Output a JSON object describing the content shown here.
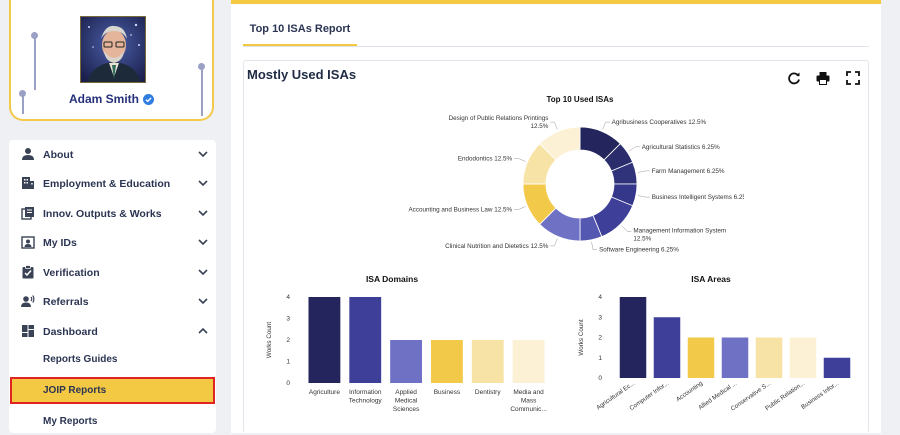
{
  "profile": {
    "name": "Adam Smith"
  },
  "sidebar": {
    "items": [
      {
        "label": "About",
        "icon": "person-icon"
      },
      {
        "label": "Employment & Education",
        "icon": "building-icon"
      },
      {
        "label": "Innov. Outputs & Works",
        "icon": "documents-icon"
      },
      {
        "label": "My IDs",
        "icon": "id-card-icon"
      },
      {
        "label": "Verification",
        "icon": "clipboard-check-icon"
      },
      {
        "label": "Referrals",
        "icon": "speaking-person-icon"
      },
      {
        "label": "Dashboard",
        "icon": "dashboard-icon"
      }
    ],
    "sub_items": [
      {
        "label": "Reports Guides"
      },
      {
        "label": "JOIP Reports"
      },
      {
        "label": "My Reports"
      }
    ]
  },
  "tabs": [
    {
      "label": "Top 10 ISAs Report"
    }
  ],
  "card": {
    "title": "Mostly Used ISAs"
  },
  "colors": {
    "accent": "#f3c843",
    "navy_dark": "#23255c",
    "navy": "#3b3b94",
    "periwinkle": "#6d6fc0",
    "gold": "#f3c94a",
    "light_gold": "#f7e19e",
    "cream": "#fbf1d3"
  },
  "chart_data": [
    {
      "type": "pie",
      "title": "Top 10 Used ISAs",
      "donut": true,
      "slices": [
        {
          "label": "Agribusiness Cooperatives",
          "value": 12.5,
          "display": "12.5%",
          "color": "#23255c"
        },
        {
          "label": "Agricultural Statistics",
          "value": 6.25,
          "display": "6.25%",
          "color": "#2a2c6c"
        },
        {
          "label": "Farm Management",
          "value": 6.25,
          "display": "6.25%",
          "color": "#30327a"
        },
        {
          "label": "Business Intelligent Systems",
          "value": 6.25,
          "display": "6.25%",
          "color": "#35378a"
        },
        {
          "label": "Management Information System",
          "value": 12.5,
          "display": "12.5%",
          "color": "#3d3f98"
        },
        {
          "label": "Software Engineering",
          "value": 6.25,
          "display": "6.25%",
          "color": "#5558b0"
        },
        {
          "label": "Clinical Nutrition and Dietetics",
          "value": 12.5,
          "display": "12.5%",
          "color": "#6f71c4"
        },
        {
          "label": "Accounting and Business Law",
          "value": 12.5,
          "display": "12.5%",
          "color": "#f3c94a"
        },
        {
          "label": "Endodontics",
          "value": 12.5,
          "display": "12.5%",
          "color": "#f8e3a6"
        },
        {
          "label": "Design of Public Relations Printings",
          "value": 12.5,
          "display": "12.5%",
          "color": "#fcf1d4"
        }
      ]
    },
    {
      "type": "bar",
      "title": "ISA Domains",
      "ylabel": "Works Count",
      "ylim": [
        0,
        4
      ],
      "yticks": [
        "0",
        "1",
        "2",
        "3",
        "4"
      ],
      "categories": [
        [
          "Agriculture"
        ],
        [
          "Information",
          "Technology"
        ],
        [
          "Applied",
          "Medical",
          "Sciences"
        ],
        [
          "Business"
        ],
        [
          "Dentistry"
        ],
        [
          "Media and",
          "Mass",
          "Communic..."
        ]
      ],
      "values": [
        4,
        4,
        2,
        2,
        2,
        2
      ],
      "colors": [
        "#23255c",
        "#3d3f98",
        "#6f71c4",
        "#f3c94a",
        "#f8e3a6",
        "#fcf1d4"
      ]
    },
    {
      "type": "bar",
      "title": "ISA Areas",
      "ylabel": "Works Count",
      "ylim": [
        0,
        4
      ],
      "yticks": [
        "0",
        "1",
        "2",
        "3",
        "4"
      ],
      "categories": [
        "Agricultural Ec...",
        "Computer Infor...",
        "Accounting",
        "Allied Medical ...",
        "Conservative S...",
        "Public Relation...",
        "Business Infor..."
      ],
      "values": [
        4,
        3,
        2,
        2,
        2,
        2,
        1
      ],
      "colors": [
        "#23255c",
        "#3d3f98",
        "#f3c94a",
        "#6f71c4",
        "#f8e3a6",
        "#fcf1d4",
        "#3d3f98"
      ]
    }
  ]
}
